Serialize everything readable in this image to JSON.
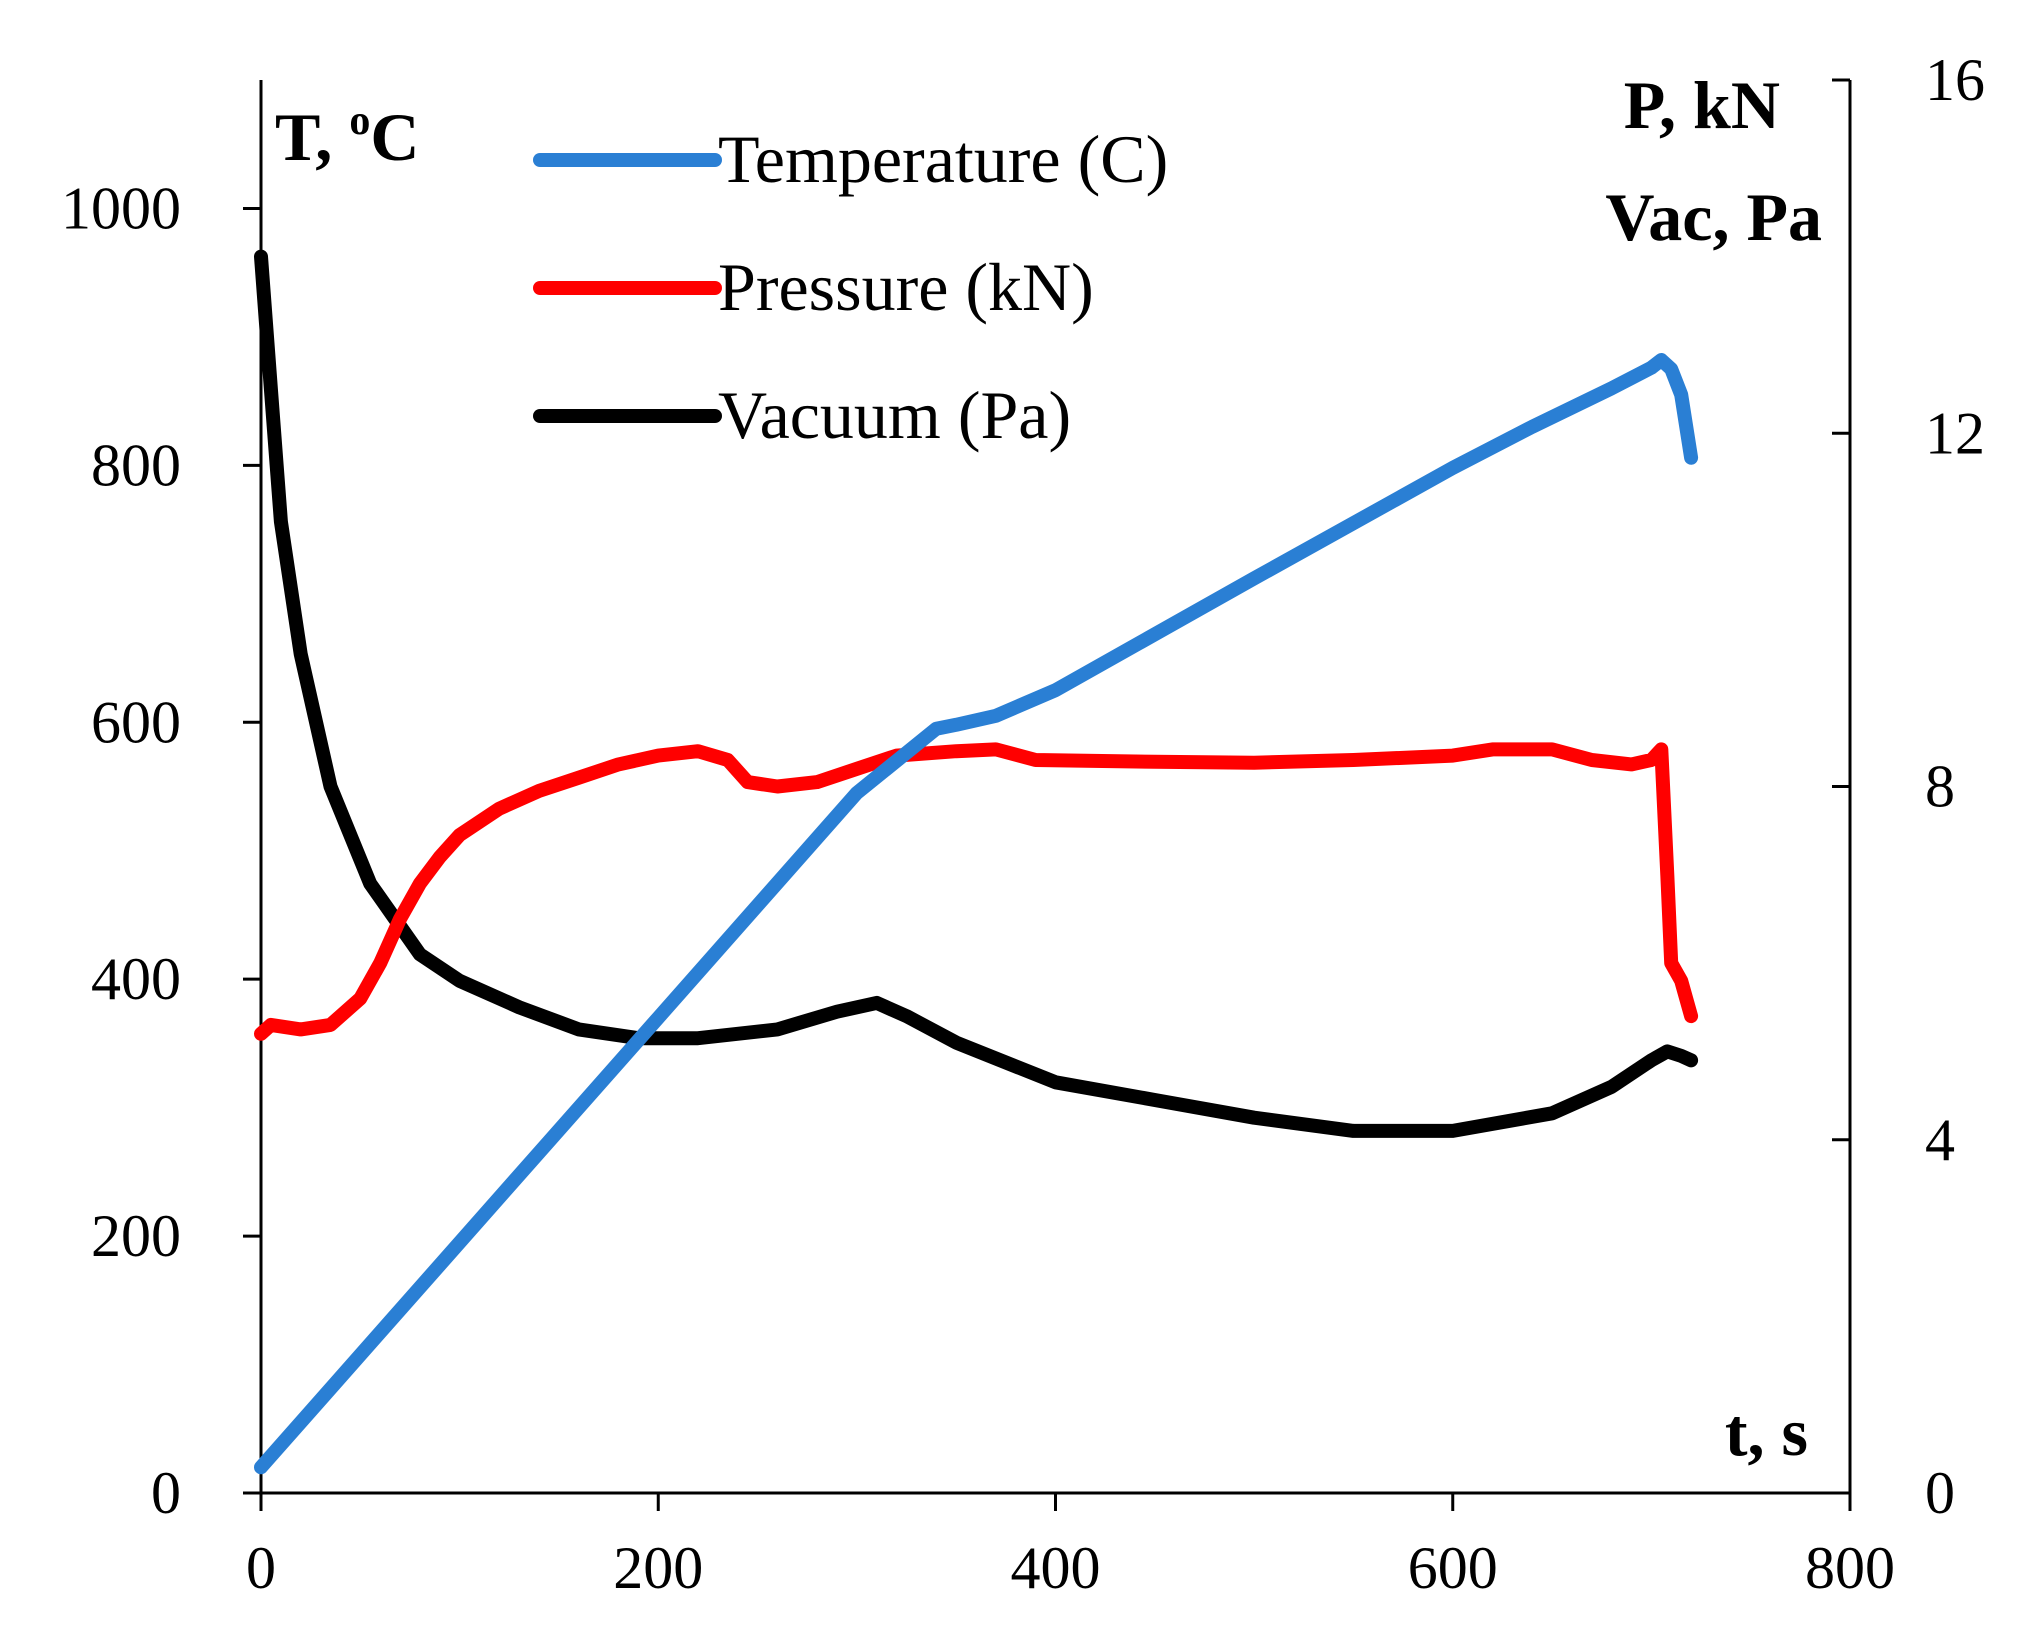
{
  "chart_data": {
    "type": "line",
    "title": "",
    "x_axis": {
      "label": "t, s",
      "range": [
        0,
        800
      ],
      "ticks": [
        "0",
        "200",
        "400",
        "600",
        "800"
      ],
      "tick_values": [
        0,
        200,
        400,
        600,
        800
      ]
    },
    "y_axis_left": {
      "label": "T, ",
      "label_sup": "o",
      "label_tail": "C",
      "range": [
        0,
        1100
      ],
      "ticks": [
        "0",
        "200",
        "400",
        "600",
        "800",
        "1000"
      ],
      "tick_values": [
        0,
        200,
        400,
        600,
        800,
        1000
      ]
    },
    "y_axis_right": {
      "label_line1": "P, kN",
      "label_line2": "Vac, Pa",
      "range": [
        0,
        16
      ],
      "ticks": [
        "0",
        "4",
        "8",
        "12",
        "16"
      ],
      "tick_values": [
        0,
        4,
        8,
        12,
        16
      ]
    },
    "legend": [
      {
        "label": "Temperature (C)",
        "color": "#2a7fd4"
      },
      {
        "label": "Pressure (kN)",
        "color": "#ff0000"
      },
      {
        "label": "Vacuum (Pa)",
        "color": "#000000"
      }
    ],
    "series": [
      {
        "name": "Temperature (C)",
        "axis": "left",
        "color": "#2a7fd4",
        "points": [
          [
            0,
            20
          ],
          [
            100,
            195
          ],
          [
            200,
            370
          ],
          [
            300,
            545
          ],
          [
            340,
            595
          ],
          [
            350,
            598
          ],
          [
            370,
            605
          ],
          [
            400,
            625
          ],
          [
            500,
            712
          ],
          [
            600,
            798
          ],
          [
            640,
            830
          ],
          [
            680,
            860
          ],
          [
            700,
            876
          ],
          [
            705,
            882
          ],
          [
            710,
            875
          ],
          [
            715,
            855
          ],
          [
            720,
            806
          ]
        ]
      },
      {
        "name": "Pressure (kN)",
        "axis": "right",
        "color": "#ff0000",
        "points": [
          [
            0,
            5.2
          ],
          [
            5,
            5.3
          ],
          [
            20,
            5.25
          ],
          [
            35,
            5.3
          ],
          [
            50,
            5.6
          ],
          [
            60,
            6.0
          ],
          [
            70,
            6.5
          ],
          [
            80,
            6.9
          ],
          [
            90,
            7.2
          ],
          [
            100,
            7.45
          ],
          [
            120,
            7.75
          ],
          [
            140,
            7.95
          ],
          [
            160,
            8.1
          ],
          [
            180,
            8.25
          ],
          [
            200,
            8.35
          ],
          [
            220,
            8.4
          ],
          [
            235,
            8.3
          ],
          [
            245,
            8.05
          ],
          [
            260,
            8.0
          ],
          [
            280,
            8.05
          ],
          [
            300,
            8.2
          ],
          [
            320,
            8.35
          ],
          [
            350,
            8.4
          ],
          [
            370,
            8.42
          ],
          [
            390,
            8.3
          ],
          [
            450,
            8.28
          ],
          [
            500,
            8.27
          ],
          [
            550,
            8.3
          ],
          [
            600,
            8.35
          ],
          [
            620,
            8.42
          ],
          [
            650,
            8.42
          ],
          [
            670,
            8.3
          ],
          [
            690,
            8.25
          ],
          [
            700,
            8.3
          ],
          [
            705,
            8.42
          ],
          [
            708,
            7.0
          ],
          [
            710,
            6.0
          ],
          [
            715,
            5.8
          ],
          [
            720,
            5.4
          ]
        ]
      },
      {
        "name": "Vacuum (Pa)",
        "axis": "right",
        "color": "#000000",
        "points": [
          [
            0,
            14.0
          ],
          [
            5,
            12.5
          ],
          [
            10,
            11.0
          ],
          [
            20,
            9.5
          ],
          [
            35,
            8.0
          ],
          [
            55,
            6.9
          ],
          [
            80,
            6.1
          ],
          [
            100,
            5.8
          ],
          [
            130,
            5.5
          ],
          [
            160,
            5.25
          ],
          [
            190,
            5.15
          ],
          [
            220,
            5.15
          ],
          [
            260,
            5.25
          ],
          [
            290,
            5.45
          ],
          [
            310,
            5.55
          ],
          [
            325,
            5.4
          ],
          [
            350,
            5.1
          ],
          [
            400,
            4.65
          ],
          [
            450,
            4.45
          ],
          [
            500,
            4.25
          ],
          [
            550,
            4.1
          ],
          [
            600,
            4.1
          ],
          [
            650,
            4.3
          ],
          [
            680,
            4.6
          ],
          [
            700,
            4.9
          ],
          [
            708,
            5.0
          ],
          [
            715,
            4.95
          ],
          [
            720,
            4.9
          ]
        ]
      }
    ]
  }
}
